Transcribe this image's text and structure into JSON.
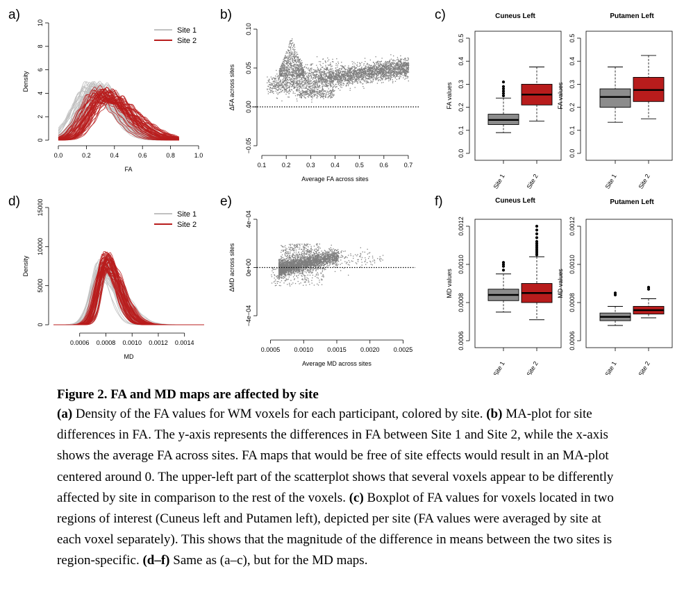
{
  "figure": {
    "panel_labels": [
      "a)",
      "b)",
      "c)",
      "d)",
      "e)",
      "f)"
    ]
  },
  "chart_data": [
    {
      "panel": "a",
      "type": "line",
      "xlabel": "FA",
      "ylabel": "Density",
      "xlim": [
        0,
        1
      ],
      "ylim": [
        0,
        10
      ],
      "xticks": [
        "0.0",
        "0.2",
        "0.4",
        "0.6",
        "0.8",
        "1.0"
      ],
      "yticks": [
        "0",
        "2",
        "4",
        "6",
        "8",
        "10"
      ],
      "legend": {
        "position": "top-right",
        "entries": [
          "Site 1",
          "Site 2"
        ]
      },
      "series": [
        {
          "name": "Site 1",
          "color": "#c0c0c0",
          "peak_x": 0.25,
          "peak_y": 4.2,
          "spread": 0.095
        },
        {
          "name": "Site 2",
          "color": "#b81c1c",
          "peak_x": 0.32,
          "peak_y": 3.9,
          "spread": 0.1
        }
      ]
    },
    {
      "panel": "b",
      "type": "scatter",
      "xlabel": "Average FA across sites",
      "ylabel": "ΔFA across sites",
      "xlim": [
        0.08,
        0.72
      ],
      "ylim": [
        -0.05,
        0.1
      ],
      "xticks": [
        "0.1",
        "0.2",
        "0.3",
        "0.4",
        "0.5",
        "0.6",
        "0.7"
      ],
      "yticks": [
        "−0.05",
        "0.00",
        "0.05",
        "0.10"
      ],
      "reference_line_y": 0,
      "point_color": "#7f7f7f"
    },
    {
      "panel": "c",
      "type": "box",
      "ylabel": "FA values",
      "ylim": [
        0,
        0.5
      ],
      "yticks": [
        "0.0",
        "0.1",
        "0.2",
        "0.3",
        "0.4",
        "0.5"
      ],
      "categories": [
        "Site 1",
        "Site 2"
      ],
      "regions": [
        {
          "title": "Cuneus Left",
          "boxes": [
            {
              "name": "Site 1",
              "color": "#8c8c8c",
              "q1": 0.125,
              "median": 0.145,
              "q3": 0.17,
              "whisker_low": 0.09,
              "whisker_high": 0.24,
              "outliers": [
                0.25,
                0.26,
                0.27,
                0.28,
                0.29,
                0.31
              ]
            },
            {
              "name": "Site 2",
              "color": "#b81c1c",
              "q1": 0.21,
              "median": 0.255,
              "q3": 0.3,
              "whisker_low": 0.14,
              "whisker_high": 0.375,
              "outliers": []
            }
          ]
        },
        {
          "title": "Putamen Left",
          "boxes": [
            {
              "name": "Site 1",
              "color": "#8c8c8c",
              "q1": 0.2,
              "median": 0.245,
              "q3": 0.28,
              "whisker_low": 0.135,
              "whisker_high": 0.375,
              "outliers": []
            },
            {
              "name": "Site 2",
              "color": "#b81c1c",
              "q1": 0.225,
              "median": 0.275,
              "q3": 0.33,
              "whisker_low": 0.15,
              "whisker_high": 0.425,
              "outliers": []
            }
          ]
        }
      ]
    },
    {
      "panel": "d",
      "type": "line",
      "xlabel": "MD",
      "ylabel": "Density",
      "xlim": [
        0.0004,
        0.00155
      ],
      "ylim": [
        0,
        15000
      ],
      "xticks": [
        "0.0006",
        "0.0008",
        "0.0010",
        "0.0012",
        "0.0014"
      ],
      "yticks": [
        "0",
        "5000",
        "10000",
        "15000"
      ],
      "legend": {
        "position": "top-right",
        "entries": [
          "Site 1",
          "Site 2"
        ]
      },
      "series": [
        {
          "name": "Site 1",
          "color": "#c0c0c0",
          "peak_x": 0.00078,
          "peak_y": 7500,
          "spread": 6e-05
        },
        {
          "name": "Site 2",
          "color": "#b81c1c",
          "peak_x": 0.0008,
          "peak_y": 8000,
          "spread": 5.5e-05
        }
      ]
    },
    {
      "panel": "e",
      "type": "scatter",
      "xlabel": "Average MD across sites",
      "ylabel": "ΔMD across sites",
      "xlim": [
        0.0004,
        0.0026
      ],
      "ylim": [
        -0.0004,
        0.0004
      ],
      "xticks": [
        "0.0005",
        "0.0010",
        "0.0015",
        "0.0020",
        "0.0025"
      ],
      "yticks": [
        "−4e−04",
        "0e+00",
        "4e−04"
      ],
      "reference_line_y": 0,
      "point_color": "#7f7f7f"
    },
    {
      "panel": "f",
      "type": "box",
      "ylabel": "MD values",
      "ylim": [
        0.0006,
        0.0012
      ],
      "yticks": [
        "0.0006",
        "0.0008",
        "0.0010",
        "0.0012"
      ],
      "categories": [
        "Site 1",
        "Site 2"
      ],
      "regions": [
        {
          "title": "Cuneus Left",
          "boxes": [
            {
              "name": "Site 1",
              "color": "#8c8c8c",
              "q1": 0.00081,
              "median": 0.00084,
              "q3": 0.00087,
              "whisker_low": 0.00075,
              "whisker_high": 0.00095,
              "outliers": [
                0.00097,
                0.00099,
                0.001,
                0.00101
              ]
            },
            {
              "name": "Site 2",
              "color": "#b81c1c",
              "q1": 0.0008,
              "median": 0.00085,
              "q3": 0.0009,
              "whisker_low": 0.00071,
              "whisker_high": 0.00104,
              "outliers": [
                0.00105,
                0.00106,
                0.00107,
                0.00108,
                0.00109,
                0.0011,
                0.00111,
                0.00112,
                0.00114,
                0.00116,
                0.00118,
                0.0012
              ]
            }
          ]
        },
        {
          "title": "Putamen Left",
          "boxes": [
            {
              "name": "Site 1",
              "color": "#8c8c8c",
              "q1": 0.000705,
              "median": 0.000725,
              "q3": 0.000745,
              "whisker_low": 0.00068,
              "whisker_high": 0.00078,
              "outliers": [
                0.00084,
                0.00085
              ]
            },
            {
              "name": "Site 2",
              "color": "#b81c1c",
              "q1": 0.00074,
              "median": 0.00076,
              "q3": 0.00078,
              "whisker_low": 0.00072,
              "whisker_high": 0.00082,
              "outliers": [
                0.00087,
                0.00088
              ]
            }
          ]
        }
      ]
    }
  ],
  "caption": {
    "title": "Figure 2. FA and MD maps are affected by site",
    "parts": [
      {
        "t": "(a)",
        "b": true
      },
      {
        "t": " Density of the FA values for WM voxels for each participant, colored by site. ",
        "b": false
      },
      {
        "t": "(b)",
        "b": true
      },
      {
        "t": " MA-plot for site differences in FA. The y-axis represents the differences in FA between Site 1 and Site 2, while the x-axis shows the average FA across sites. FA maps that would be free of site effects would result in an MA-plot centered around 0. The upper-left part of the scatterplot shows that several voxels appear to be differently affected by site in comparison to the rest of the voxels. ",
        "b": false
      },
      {
        "t": "(c)",
        "b": true
      },
      {
        "t": " Boxplot of FA values for voxels located in two regions of interest (Cuneus left and Putamen left), depicted per site (FA values were averaged by site at each voxel separately). This shows that the magnitude of the difference in means between the two sites is region-specific. ",
        "b": false
      },
      {
        "t": "(d–f)",
        "b": true
      },
      {
        "t": " Same as (a–c), but for the MD maps.",
        "b": false
      }
    ]
  }
}
